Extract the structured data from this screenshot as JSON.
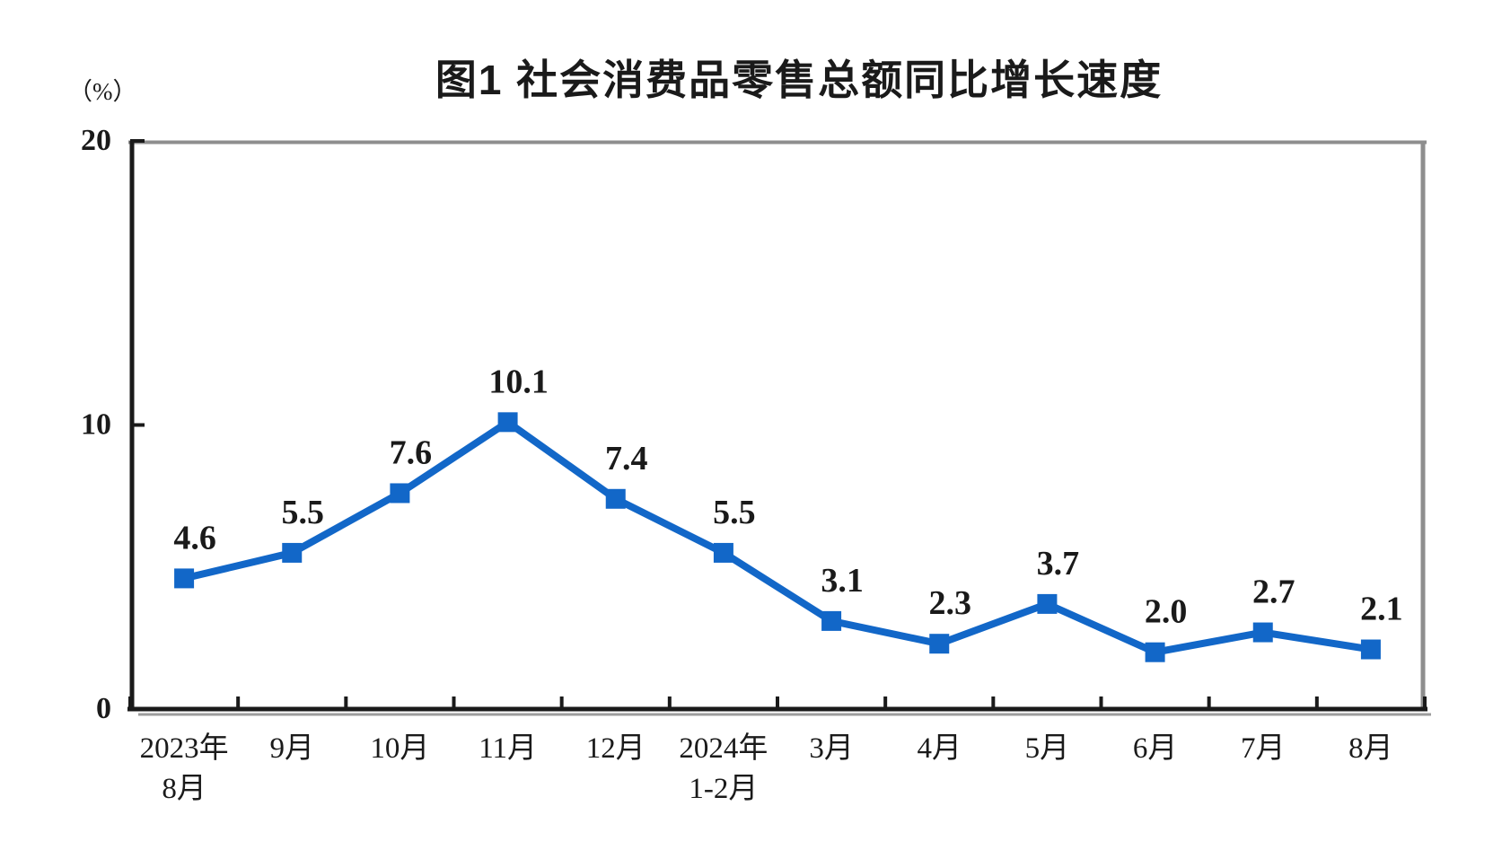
{
  "page": {
    "background": "#ffffff"
  },
  "chart_data": {
    "type": "line",
    "title": "图1 社会消费品零售总额同比增长速度",
    "unit_label": "（%）",
    "categories": [
      "2023年8月",
      "9月",
      "10月",
      "11月",
      "12月",
      "2024年1-2月",
      "3月",
      "4月",
      "5月",
      "6月",
      "7月",
      "8月"
    ],
    "category_lines": [
      [
        "2023年",
        "8月"
      ],
      [
        "9月"
      ],
      [
        "10月"
      ],
      [
        "11月"
      ],
      [
        "12月"
      ],
      [
        "2024年",
        "1-2月"
      ],
      [
        "3月"
      ],
      [
        "4月"
      ],
      [
        "5月"
      ],
      [
        "6月"
      ],
      [
        "7月"
      ],
      [
        "8月"
      ]
    ],
    "values": [
      4.6,
      5.5,
      7.6,
      10.1,
      7.4,
      5.5,
      3.1,
      2.3,
      3.7,
      2.0,
      2.7,
      2.1
    ],
    "data_labels": [
      "4.6",
      "5.5",
      "7.6",
      "10.1",
      "7.4",
      "5.5",
      "3.1",
      "2.3",
      "3.7",
      "2.0",
      "2.7",
      "2.1"
    ],
    "y_ticks": [
      0,
      10,
      20
    ],
    "ylim": [
      0,
      20
    ],
    "grid": false,
    "legend": "none",
    "colors": {
      "line": "#1267C8",
      "marker": "#1267C8",
      "text": "#1a1a1a",
      "frame_dark": "#1a1a1a",
      "frame_light": "#8e8e8e",
      "axis_shadow": "#9c9c9c"
    }
  }
}
